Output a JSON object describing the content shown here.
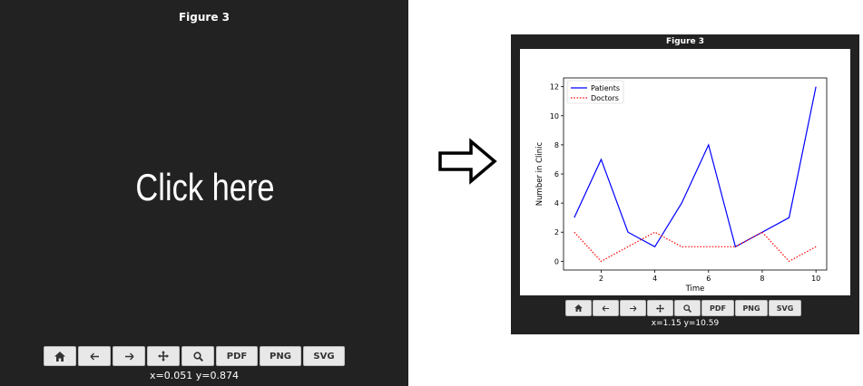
{
  "left_panel": {
    "title": "Figure 3",
    "placeholder_text": "Click here",
    "coords": "x=0.051 y=0.874"
  },
  "right_panel": {
    "title": "Figure 3",
    "coords": "x=1.15 y=10.59"
  },
  "toolbar": {
    "home_icon": "home-icon",
    "back_icon": "arrow-left-icon",
    "forward_icon": "arrow-right-icon",
    "pan_icon": "move-icon",
    "zoom_icon": "zoom-icon",
    "pdf_label": "PDF",
    "png_label": "PNG",
    "svg_label": "SVG"
  },
  "colors": {
    "panel_bg": "#222222",
    "patients": "#0000ff",
    "doctors": "#ff0000"
  },
  "chart_data": {
    "type": "line",
    "title": "",
    "xlabel": "Time",
    "ylabel": "Number in Clinic",
    "x": [
      1,
      2,
      3,
      4,
      5,
      6,
      7,
      8,
      9,
      10
    ],
    "xlim": [
      0.6,
      10.4
    ],
    "ylim": [
      -0.6,
      12.6
    ],
    "xticks": [
      2,
      4,
      6,
      8,
      10
    ],
    "yticks": [
      0,
      2,
      4,
      6,
      8,
      10,
      12
    ],
    "legend_position": "top-left",
    "grid": false,
    "series": [
      {
        "name": "Patients",
        "values": [
          3,
          7,
          2,
          1,
          4,
          8,
          1,
          2,
          3,
          12
        ],
        "color": "#0000ff",
        "style": "solid"
      },
      {
        "name": "Doctors",
        "values": [
          2,
          0,
          1,
          2,
          1,
          1,
          1,
          2,
          0,
          1
        ],
        "color": "#ff0000",
        "style": "dotted"
      }
    ]
  }
}
